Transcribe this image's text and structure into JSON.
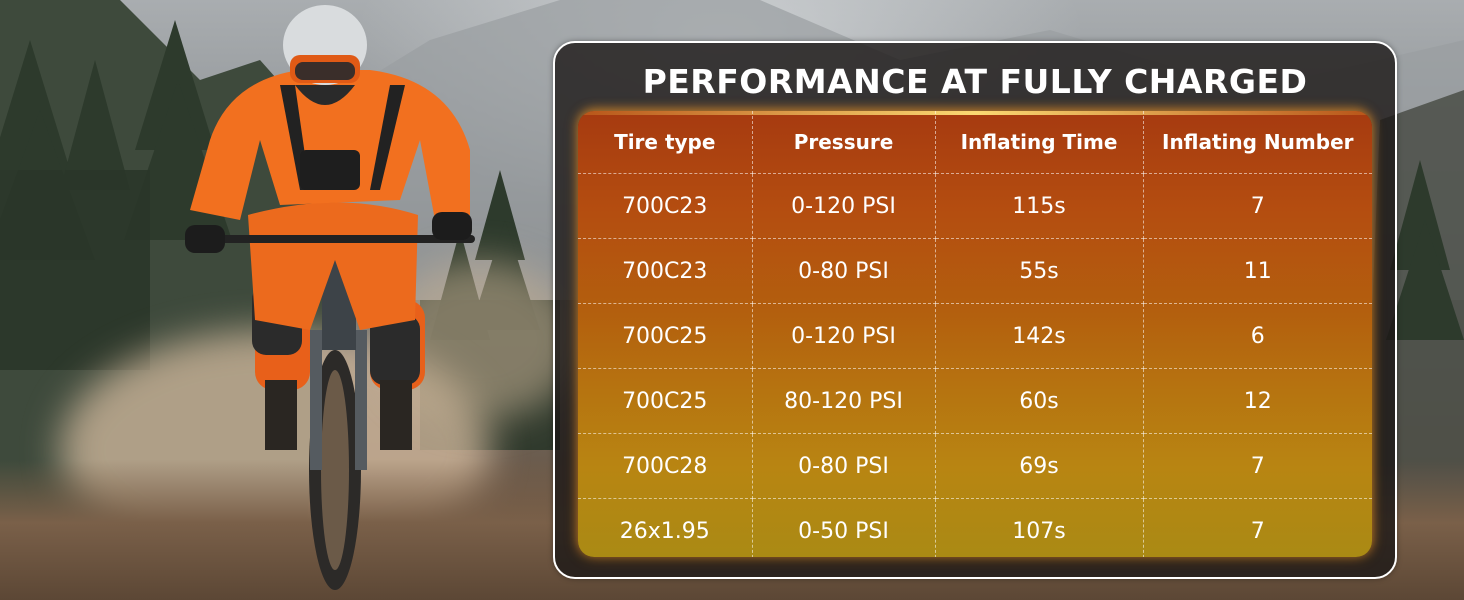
{
  "title": "PERFORMANCE AT FULLY CHARGED",
  "table": {
    "headers": [
      "Tire type",
      "Pressure",
      "Inflating Time",
      "Inflating Number"
    ],
    "rows": [
      [
        "700C23",
        "0-120 PSI",
        "115s",
        "7"
      ],
      [
        "700C23",
        "0-80 PSI",
        "55s",
        "11"
      ],
      [
        "700C25",
        "0-120 PSI",
        "142s",
        "6"
      ],
      [
        "700C25",
        "80-120 PSI",
        "60s",
        "12"
      ],
      [
        "700C28",
        "0-80 PSI",
        "69s",
        "7"
      ],
      [
        "26x1.95",
        "0-50 PSI",
        "107s",
        "7"
      ]
    ]
  },
  "colors": {
    "accent": "#f26a1b",
    "table_top": "#a63a10",
    "table_bottom": "#aa8a14",
    "text": "#ffffff"
  },
  "icons": [
    "mountain-bike-rider-photo"
  ]
}
